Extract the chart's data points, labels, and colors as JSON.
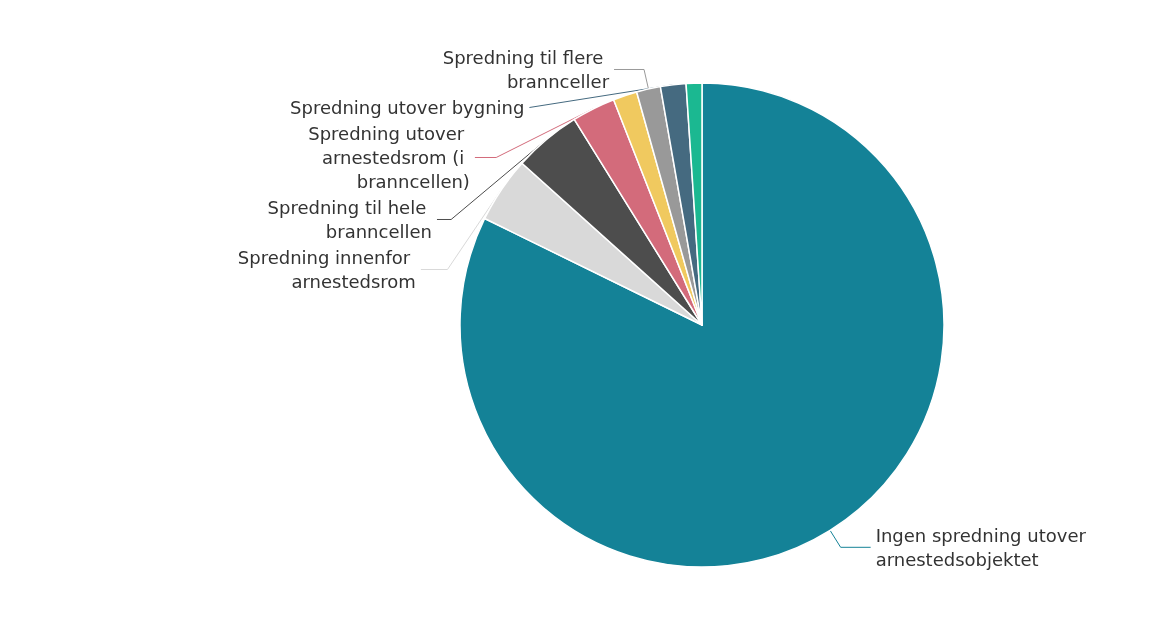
{
  "chart_data": {
    "type": "pie",
    "categories": [
      "Ingen spredning utover arnestedsobjektet",
      "Spredning innenfor arnestedsrom",
      "Spredning til hele branncellen",
      "Spredning utover arnestedsrom (i branncellen)",
      null,
      "Spredning til flere brannceller",
      "Spredning utover bygning",
      null
    ],
    "values": [
      82.25,
      4.4,
      4.5,
      2.9,
      1.6,
      1.6,
      1.7,
      1.05
    ],
    "colors": [
      "#148297",
      "#d9d9d9",
      "#4d4d4d",
      "#d36b7b",
      "#f0c95f",
      "#999999",
      "#456a80",
      "#1bb891"
    ]
  }
}
